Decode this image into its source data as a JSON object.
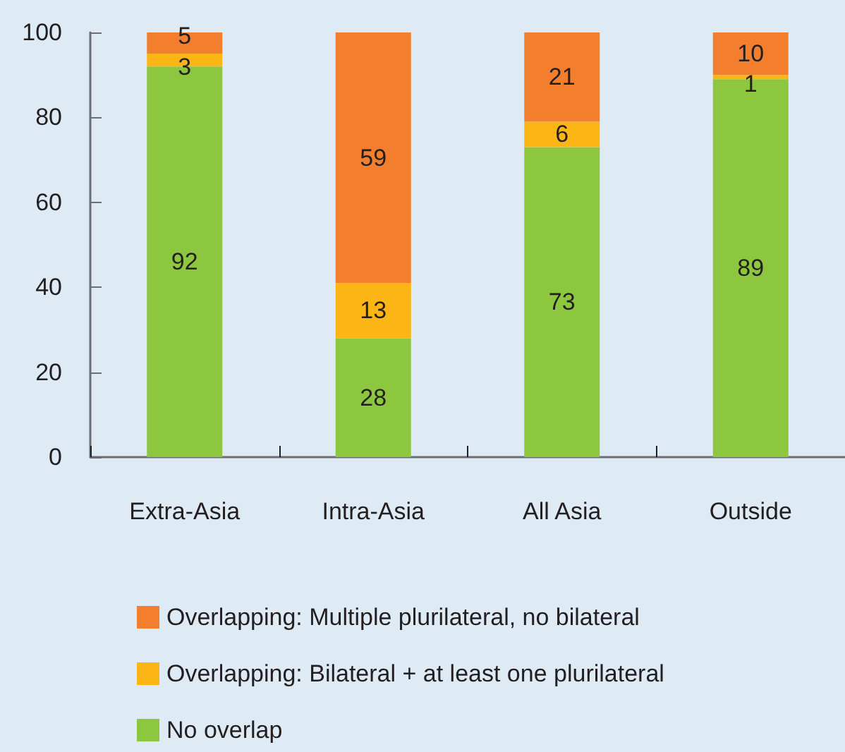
{
  "chart_data": {
    "type": "bar",
    "stacked": true,
    "categories": [
      "Extra-Asia",
      "Intra-Asia",
      "All Asia",
      "Outside"
    ],
    "series": [
      {
        "name": "No overlap",
        "color": "#8dc63f",
        "values": [
          92,
          28,
          73,
          89
        ]
      },
      {
        "name": "Overlapping: Bilateral + at least one plurilateral",
        "color": "#fbb616",
        "values": [
          3,
          13,
          6,
          1
        ]
      },
      {
        "name": "Overlapping: Multiple plurilateral, no bilateral",
        "color": "#f37f2e",
        "values": [
          5,
          59,
          21,
          10
        ]
      }
    ],
    "ylim": [
      0,
      100
    ],
    "yticks": [
      0,
      20,
      40,
      60,
      80,
      100
    ],
    "data_labels": true,
    "grid": false,
    "legend": "bottom"
  }
}
